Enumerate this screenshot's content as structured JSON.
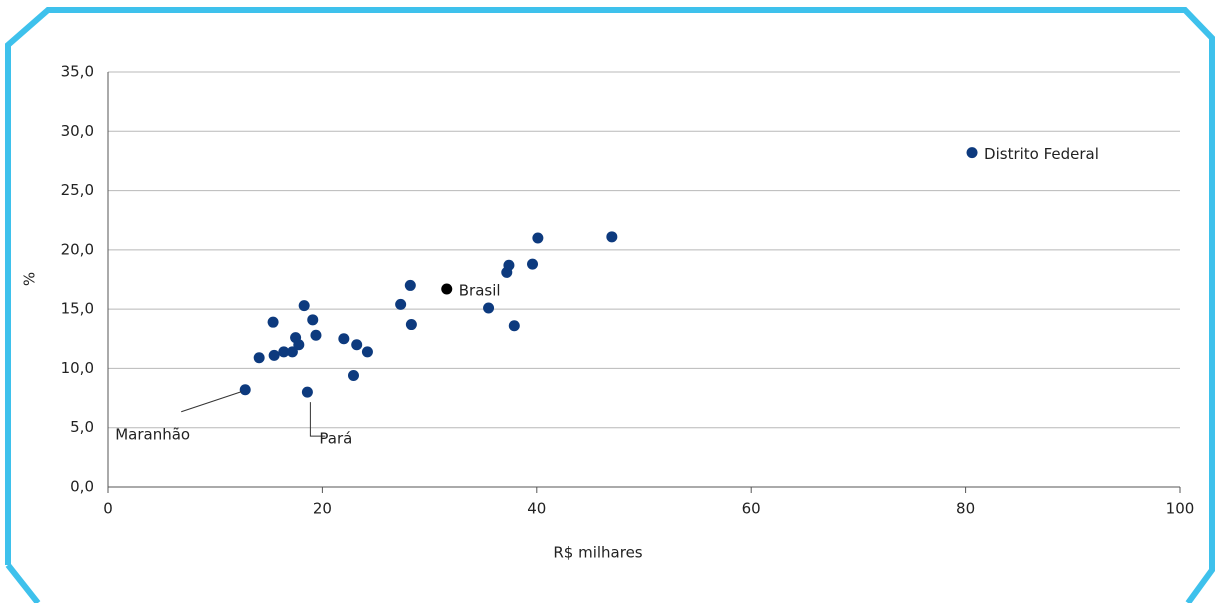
{
  "chart_data": {
    "type": "scatter",
    "x_label": "R$ milhares",
    "y_label": "%",
    "xlim": [
      0,
      100
    ],
    "xticks": [
      0,
      20,
      40,
      60,
      80,
      100
    ],
    "ylim": [
      0,
      35
    ],
    "yticks": [
      {
        "value": 0,
        "label": "0,0"
      },
      {
        "value": 5,
        "label": "5,0"
      },
      {
        "value": 10,
        "label": "10,0"
      },
      {
        "value": 15,
        "label": "15,0"
      },
      {
        "value": 20,
        "label": "20,0"
      },
      {
        "value": 25,
        "label": "25,0"
      },
      {
        "value": 30,
        "label": "30,0"
      },
      {
        "value": 35,
        "label": "35,0"
      }
    ],
    "grid": true,
    "series": [
      {
        "color": "#0d3a7e",
        "x": [
          12.8,
          14.1,
          15.5,
          15.4,
          16.4,
          17.2,
          17.5,
          17.8,
          18.3,
          19.1,
          19.4,
          18.6,
          22.0,
          23.2,
          22.9,
          24.2,
          27.3,
          28.2,
          28.3,
          35.5,
          37.2,
          37.4,
          37.9,
          39.6,
          40.1,
          47.0,
          80.6
        ],
        "values": [
          8.2,
          10.9,
          11.1,
          13.9,
          11.4,
          11.4,
          12.6,
          12.0,
          15.3,
          14.1,
          12.8,
          8.0,
          12.5,
          12.0,
          9.4,
          11.4,
          15.4,
          17.0,
          13.7,
          15.1,
          18.1,
          18.7,
          13.6,
          18.8,
          21.0,
          21.1,
          28.2
        ],
        "point_labels": [
          "Maranhão",
          null,
          null,
          null,
          null,
          null,
          null,
          null,
          null,
          null,
          null,
          "Pará",
          null,
          null,
          null,
          null,
          null,
          null,
          null,
          null,
          null,
          null,
          null,
          null,
          null,
          null,
          "Distrito Federal"
        ]
      },
      {
        "color": "#000000",
        "x": [
          31.6
        ],
        "values": [
          16.7
        ],
        "point_labels": [
          "Brasil"
        ]
      }
    ]
  }
}
